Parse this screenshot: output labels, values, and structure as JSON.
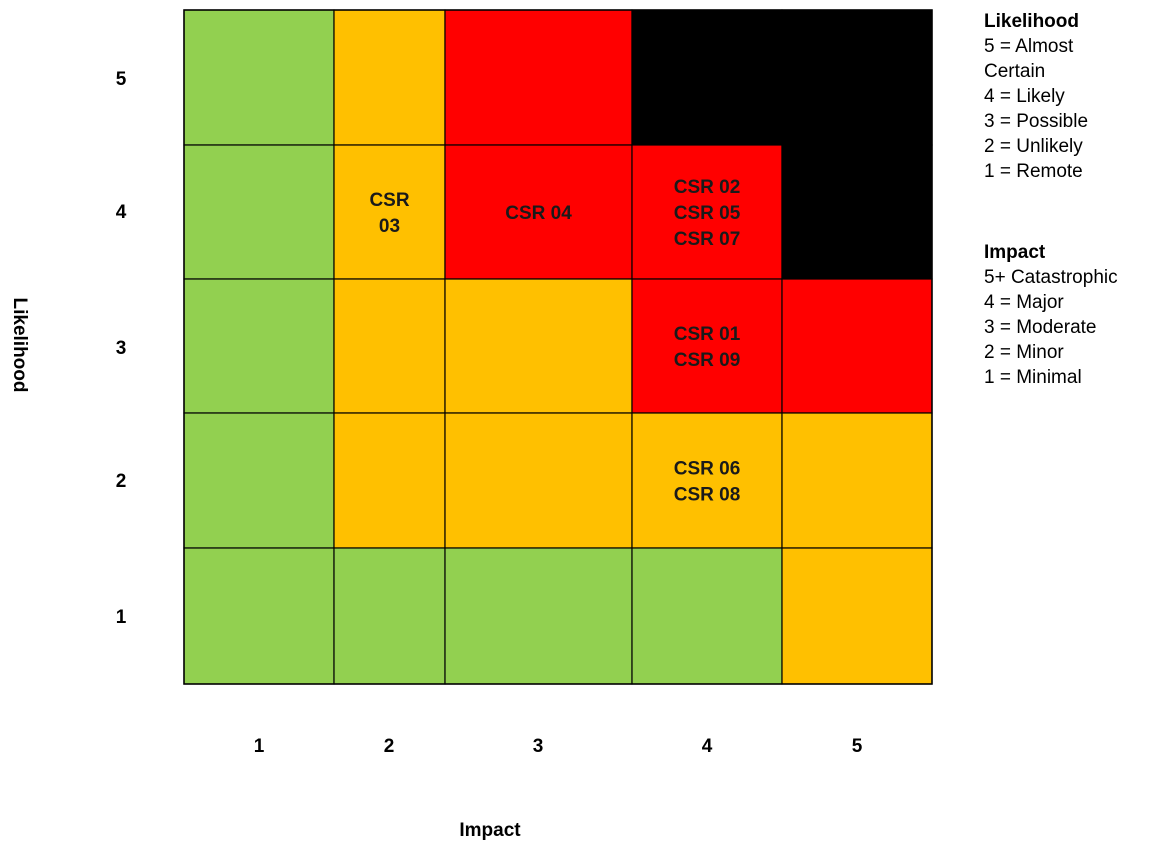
{
  "chart_data": {
    "type": "heatmap",
    "title": "",
    "xlabel": "Impact",
    "ylabel": "Likelihood",
    "x_ticks": [
      "1",
      "2",
      "3",
      "4",
      "5"
    ],
    "y_ticks": [
      "1",
      "2",
      "3",
      "4",
      "5"
    ],
    "colors": {
      "green": "#92d050",
      "amber": "#ffc000",
      "red": "#ff0000",
      "black": "#000000"
    },
    "cells": [
      {
        "impact": 1,
        "likelihood": 5,
        "color": "green",
        "labels": []
      },
      {
        "impact": 2,
        "likelihood": 5,
        "color": "amber",
        "labels": []
      },
      {
        "impact": 3,
        "likelihood": 5,
        "color": "red",
        "labels": []
      },
      {
        "impact": 4,
        "likelihood": 5,
        "color": "black",
        "labels": []
      },
      {
        "impact": 5,
        "likelihood": 5,
        "color": "black",
        "labels": []
      },
      {
        "impact": 1,
        "likelihood": 4,
        "color": "green",
        "labels": []
      },
      {
        "impact": 2,
        "likelihood": 4,
        "color": "amber",
        "labels": [
          "CSR",
          "03"
        ]
      },
      {
        "impact": 3,
        "likelihood": 4,
        "color": "red",
        "labels": [
          "CSR 04"
        ]
      },
      {
        "impact": 4,
        "likelihood": 4,
        "color": "red",
        "labels": [
          "CSR 02",
          "CSR 05",
          "CSR 07"
        ]
      },
      {
        "impact": 5,
        "likelihood": 4,
        "color": "black",
        "labels": []
      },
      {
        "impact": 1,
        "likelihood": 3,
        "color": "green",
        "labels": []
      },
      {
        "impact": 2,
        "likelihood": 3,
        "color": "amber",
        "labels": []
      },
      {
        "impact": 3,
        "likelihood": 3,
        "color": "amber",
        "labels": []
      },
      {
        "impact": 4,
        "likelihood": 3,
        "color": "red",
        "labels": [
          "CSR 01",
          "CSR 09"
        ]
      },
      {
        "impact": 5,
        "likelihood": 3,
        "color": "red",
        "labels": []
      },
      {
        "impact": 1,
        "likelihood": 2,
        "color": "green",
        "labels": []
      },
      {
        "impact": 2,
        "likelihood": 2,
        "color": "amber",
        "labels": []
      },
      {
        "impact": 3,
        "likelihood": 2,
        "color": "amber",
        "labels": []
      },
      {
        "impact": 4,
        "likelihood": 2,
        "color": "amber",
        "labels": [
          "CSR 06",
          "CSR 08"
        ]
      },
      {
        "impact": 5,
        "likelihood": 2,
        "color": "amber",
        "labels": []
      },
      {
        "impact": 1,
        "likelihood": 1,
        "color": "green",
        "labels": []
      },
      {
        "impact": 2,
        "likelihood": 1,
        "color": "green",
        "labels": []
      },
      {
        "impact": 3,
        "likelihood": 1,
        "color": "green",
        "labels": []
      },
      {
        "impact": 4,
        "likelihood": 1,
        "color": "green",
        "labels": []
      },
      {
        "impact": 5,
        "likelihood": 1,
        "color": "amber",
        "labels": []
      }
    ],
    "legend": {
      "likelihood": {
        "title": "Likelihood",
        "items": [
          "5 = Almost",
          "Certain",
          "4 = Likely",
          "3 = Possible",
          "2 = Unlikely",
          "1 = Remote"
        ]
      },
      "impact": {
        "title": "Impact",
        "items": [
          "5+ Catastrophic",
          "4 = Major",
          "3 = Moderate",
          "2 = Minor",
          "1 = Minimal"
        ]
      }
    }
  }
}
